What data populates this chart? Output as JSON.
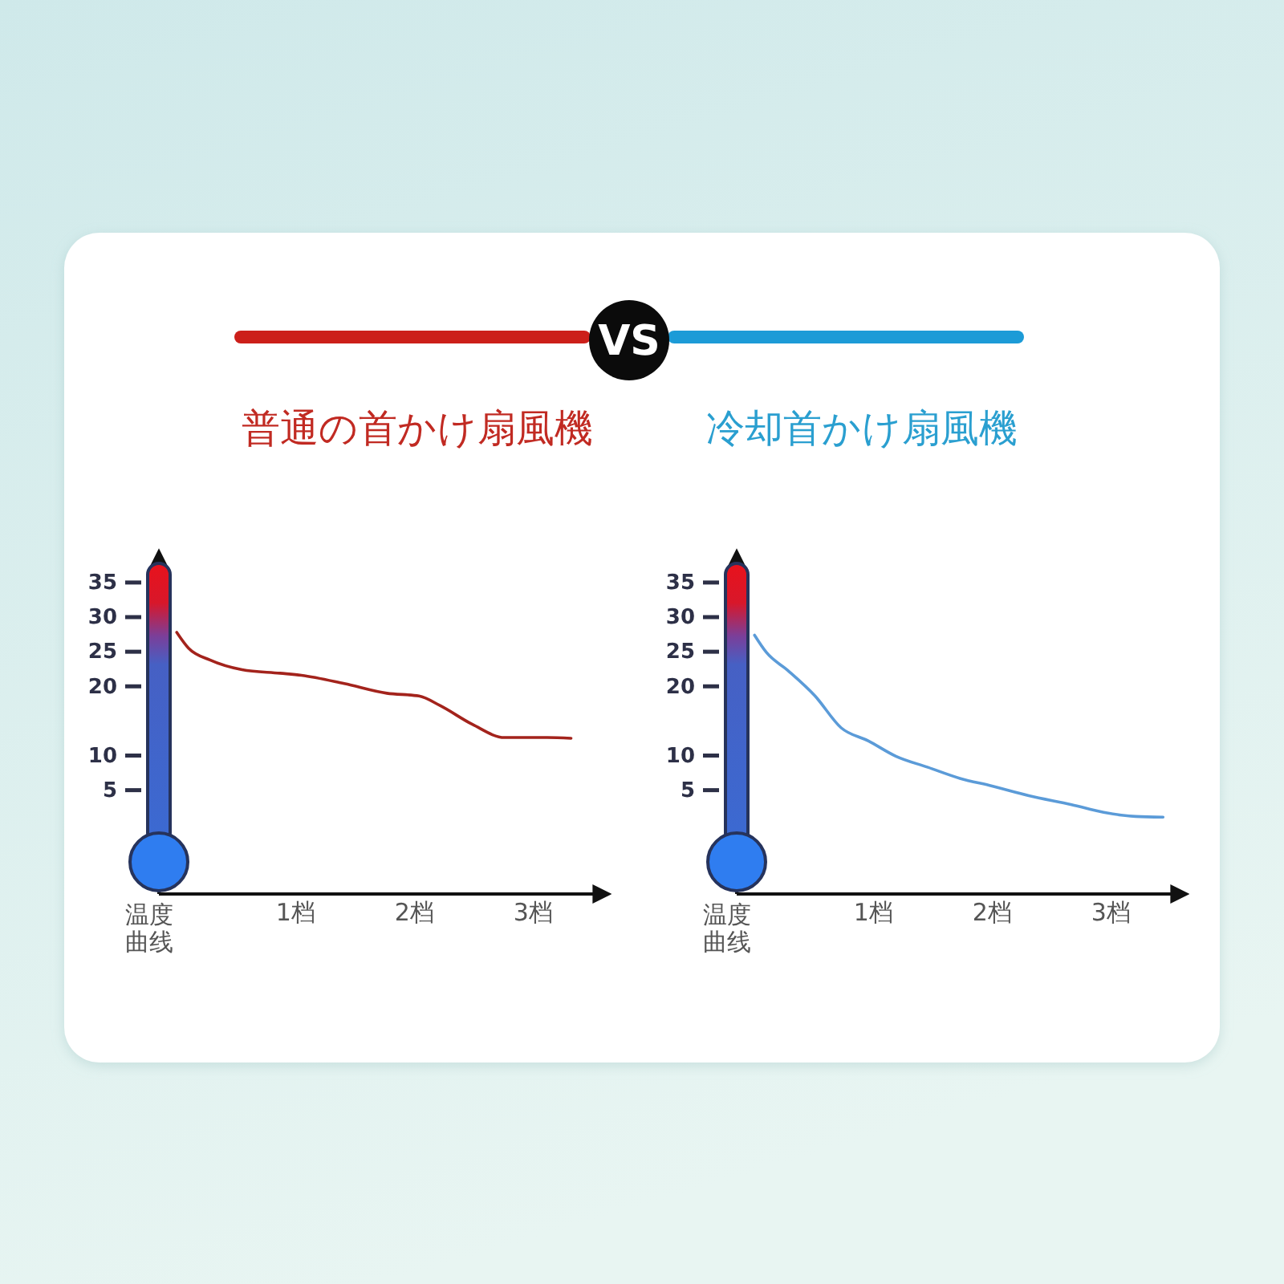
{
  "chart_data": [
    {
      "type": "line",
      "title": "普通の首かけ扇風機",
      "ylabel": "温度曲线",
      "annotations": [
        "VS"
      ],
      "marker": "none",
      "line_style": "solid",
      "xlim": [
        -0.15,
        3.55
      ],
      "xticks": [
        {
          "value": 1,
          "label": "1档"
        },
        {
          "value": 2,
          "label": "2档"
        },
        {
          "value": 3,
          "label": "3档"
        }
      ],
      "ylim": [
        -10,
        38
      ],
      "yticks": [
        5,
        10,
        20,
        25,
        30,
        35
      ],
      "series": [
        {
          "color": "#a3231c",
          "x": [
            0,
            0.1,
            0.28,
            0.55,
            0.87,
            1.05,
            1.41,
            1.77,
            2.04,
            2.22,
            2.49,
            2.76,
            3.12,
            3.32
          ],
          "values": [
            27.8,
            25.5,
            23.8,
            22.4,
            21.9,
            21.6,
            20.4,
            19,
            18.6,
            17.2,
            14.5,
            12.6,
            12.6,
            12.5
          ]
        }
      ]
    },
    {
      "type": "line",
      "title": "冷却首かけ扇風機",
      "ylabel": "温度曲线",
      "marker": "none",
      "line_style": "solid",
      "xlim": [
        -0.15,
        3.55
      ],
      "xticks": [
        {
          "value": 1,
          "label": "1档"
        },
        {
          "value": 2,
          "label": "2档"
        },
        {
          "value": 3,
          "label": "3档"
        }
      ],
      "ylim": [
        -10,
        38
      ],
      "yticks": [
        5,
        10,
        20,
        25,
        30,
        35
      ],
      "series": [
        {
          "color": "#5b9bd8",
          "x": [
            0,
            0.1,
            0.28,
            0.51,
            0.73,
            0.96,
            1.19,
            1.46,
            1.73,
            2,
            2.31,
            2.67,
            2.94,
            3.21,
            3.44
          ],
          "values": [
            27.4,
            24.9,
            22.3,
            18.6,
            14,
            12.1,
            9.9,
            8.3,
            6.7,
            5.6,
            4.2,
            2.9,
            1.8,
            1.2,
            1.1
          ]
        }
      ]
    }
  ]
}
